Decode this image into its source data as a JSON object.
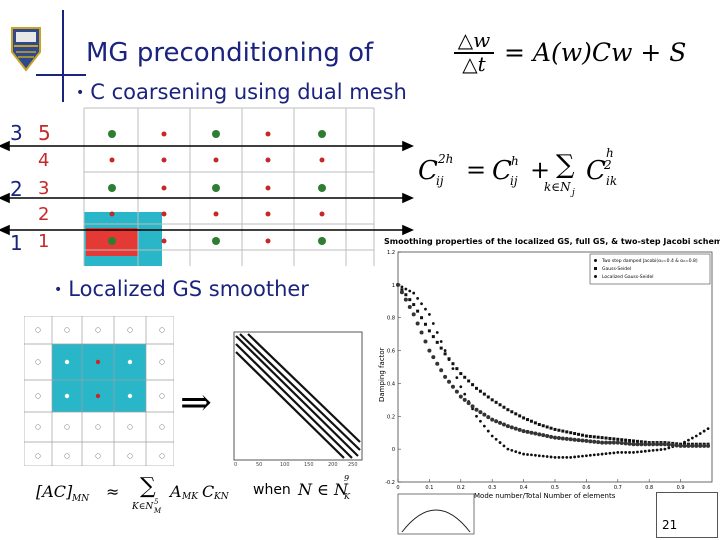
{
  "slide": {
    "title": "MG preconditioning of",
    "title_equation": {
      "lhs_num": "△w",
      "lhs_den": "△t",
      "rhs": "= A(w)Cw + S"
    },
    "bullet1": "C coarsening using dual mesh",
    "bullet2": "Localized GS smoother",
    "page_number": "21",
    "coarse_equation": {
      "lhs": "C",
      "lhs_sup": "2h",
      "lhs_sub": "ij",
      "eq": "=",
      "term1": "C",
      "term1_sup": "h",
      "term1_sub": "ij",
      "plus": "+",
      "sum_sub": "k∈N",
      "sum_sub_j": "j",
      "term2": "C",
      "term2_sup": "h",
      "term2_sub": "ik",
      "sum_sup2": "2"
    },
    "level_labels": {
      "left": [
        "3",
        "2",
        "1"
      ],
      "right": [
        "5",
        "4",
        "3",
        "2",
        "1"
      ]
    },
    "bottom_equation": {
      "lhs": "[AC]",
      "lhs_sub": "MN",
      "approx": "≈",
      "sum_sub": "K∈N",
      "sum_sub_sup": "5",
      "sum_sub_sub": "M",
      "terms": "A",
      "terms_sub1": "MK",
      "terms2": "C",
      "terms_sub2": "KN",
      "when": "when",
      "cond": "N ∈ N",
      "cond_sup": "9",
      "cond_sub": "K"
    },
    "implies": "⇒",
    "chart": {
      "title": "Smoothing properties of the localized GS, full GS, & two-step Jacobi schemes",
      "xlabel": "Mode number/Total Number of elements",
      "ylabel": "Damping factor",
      "xticks": [
        "0",
        "0.1",
        "0.2",
        "0.3",
        "0.4",
        "0.5",
        "0.6",
        "0.7",
        "0.8",
        "0.9"
      ],
      "yticks": [
        "1.2",
        "1",
        "0.8",
        "0.6",
        "0.4",
        "0.2",
        "0",
        "-0.2"
      ],
      "legend": [
        "Two step damped Jacobi(α₁=0.4 & α₂=0.8)",
        "Gauss-Seidel",
        "Localized Gauss-Seidel"
      ]
    },
    "colors": {
      "title": "#1a237e",
      "grid_green": "#2e7d32",
      "grid_red": "#c62828",
      "teal": "#29b6c9",
      "red_cell": "#e53935"
    }
  },
  "chart_data": {
    "type": "scatter",
    "title": "Smoothing properties of the localized GS, full GS, & two-step Jacobi schemes",
    "xlabel": "Mode number/Total Number of elements",
    "ylabel": "Damping factor",
    "xlim": [
      0,
      1
    ],
    "ylim": [
      -0.2,
      1.2
    ],
    "x": [
      0.0,
      0.05,
      0.1,
      0.15,
      0.2,
      0.25,
      0.3,
      0.35,
      0.4,
      0.45,
      0.5,
      0.55,
      0.6,
      0.65,
      0.7,
      0.75,
      0.8,
      0.85,
      0.9,
      0.95,
      1.0
    ],
    "series": [
      {
        "name": "Two step damped Jacobi(α₁=0.4 & α₂=0.8)",
        "values": [
          1.0,
          0.95,
          0.82,
          0.6,
          0.38,
          0.2,
          0.08,
          0.0,
          -0.03,
          -0.04,
          -0.05,
          -0.05,
          -0.04,
          -0.03,
          -0.02,
          -0.02,
          -0.01,
          0.0,
          0.03,
          0.08,
          0.14
        ]
      },
      {
        "name": "Gauss-Seidel",
        "values": [
          1.0,
          0.88,
          0.72,
          0.58,
          0.46,
          0.37,
          0.3,
          0.24,
          0.19,
          0.15,
          0.12,
          0.1,
          0.08,
          0.07,
          0.06,
          0.05,
          0.04,
          0.04,
          0.03,
          0.03,
          0.03
        ]
      },
      {
        "name": "Localized Gauss-Seidel",
        "values": [
          1.0,
          0.82,
          0.6,
          0.44,
          0.32,
          0.24,
          0.18,
          0.14,
          0.11,
          0.09,
          0.07,
          0.06,
          0.05,
          0.04,
          0.04,
          0.03,
          0.03,
          0.03,
          0.02,
          0.02,
          0.02
        ]
      }
    ],
    "legend": "top-right",
    "grid": false
  }
}
